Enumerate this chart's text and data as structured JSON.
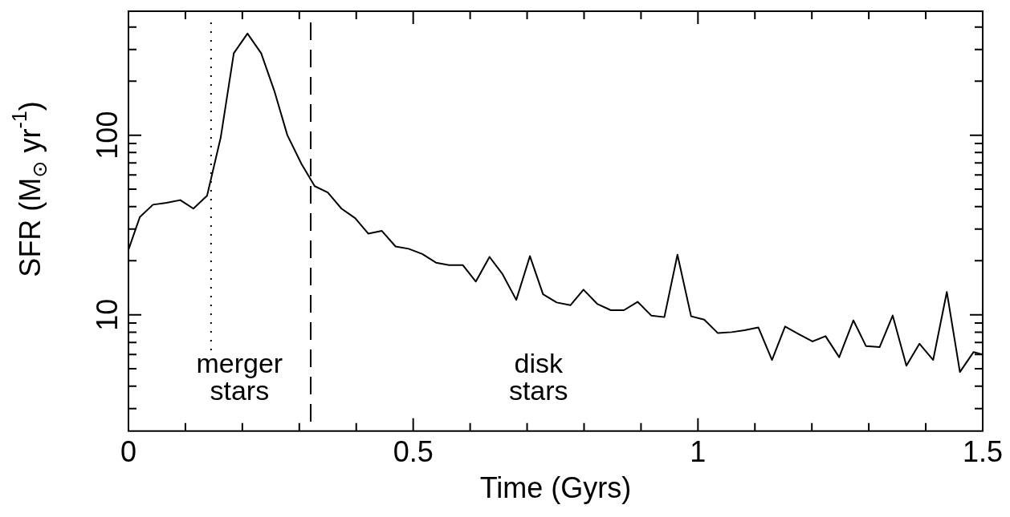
{
  "chart_data": {
    "type": "line",
    "xlabel": "Time (Gyrs)",
    "ylabel": "SFR (M$_{⊙}$ yr$^{-1}$)",
    "annotations": [
      "merger\nstars",
      "disk\nstars"
    ],
    "log": "y",
    "xlim": [
      0,
      1.5
    ],
    "ylim": [
      2.25,
      490
    ],
    "xticks": [
      0,
      {
        "value": 0.1,
        "label": null
      },
      {
        "value": 0.2,
        "label": null
      },
      {
        "value": 0.3,
        "label": null
      },
      {
        "value": 0.4,
        "label": null
      },
      0.5,
      {
        "value": 0.6,
        "label": null
      },
      {
        "value": 0.7,
        "label": null
      },
      {
        "value": 0.8,
        "label": null
      },
      {
        "value": 0.9,
        "label": null
      },
      1,
      {
        "value": 1.1,
        "label": null
      },
      {
        "value": 1.2,
        "label": null
      },
      {
        "value": 1.3,
        "label": null
      },
      {
        "value": 1.4,
        "label": null
      },
      1.5
    ],
    "yticks": [
      {
        "value": 3,
        "label": null
      },
      {
        "value": 4,
        "label": null
      },
      {
        "value": 5,
        "label": null
      },
      {
        "value": 6,
        "label": null
      },
      {
        "value": 7,
        "label": null
      },
      {
        "value": 8,
        "label": null
      },
      {
        "value": 9,
        "label": null
      },
      10,
      {
        "value": 20,
        "label": null
      },
      {
        "value": 30,
        "label": null
      },
      {
        "value": 40,
        "label": null
      },
      {
        "value": 50,
        "label": null
      },
      {
        "value": 60,
        "label": null
      },
      {
        "value": 70,
        "label": null
      },
      {
        "value": 80,
        "label": null
      },
      {
        "value": 90,
        "label": null
      },
      100,
      {
        "value": 200,
        "label": null
      },
      {
        "value": 300,
        "label": null
      },
      {
        "value": 400,
        "label": null
      }
    ],
    "marker": "none",
    "line_style": "solid",
    "legend": false,
    "ref_lines": [
      {
        "axis": "x",
        "value": 0.145,
        "line_style": "dotted"
      },
      {
        "axis": "x",
        "value": 0.32,
        "line_style": "dashed"
      }
    ],
    "series": [
      {
        "color": "#000000",
        "x": [
          0,
          0.02,
          0.043,
          0.067,
          0.091,
          0.114,
          0.138,
          0.162,
          0.185,
          0.209,
          0.233,
          0.256,
          0.279,
          0.304,
          0.327,
          0.35,
          0.374,
          0.398,
          0.421,
          0.445,
          0.469,
          0.492,
          0.516,
          0.54,
          0.563,
          0.587,
          0.61,
          0.634,
          0.657,
          0.681,
          0.705,
          0.728,
          0.752,
          0.776,
          0.799,
          0.823,
          0.847,
          0.87,
          0.894,
          0.918,
          0.941,
          0.964,
          0.988,
          1.011,
          1.035,
          1.059,
          1.082,
          1.106,
          1.13,
          1.153,
          1.177,
          1.201,
          1.224,
          1.248,
          1.273,
          1.295,
          1.319,
          1.342,
          1.366,
          1.389,
          1.413,
          1.437,
          1.46,
          1.484,
          1.5
        ],
        "values": [
          23,
          35,
          41,
          42,
          43.5,
          39,
          46,
          97,
          286,
          368,
          286,
          177,
          100,
          69,
          52,
          48,
          39,
          34.5,
          28.3,
          29.3,
          24,
          23.3,
          21.8,
          19.5,
          18.9,
          18.9,
          15.3,
          21,
          16.8,
          12.1,
          21.2,
          13,
          11.7,
          11.3,
          13.8,
          11.5,
          10.6,
          10.6,
          11.8,
          9.9,
          9.7,
          21.6,
          9.8,
          9.4,
          7.9,
          8,
          8.2,
          8.5,
          5.6,
          8.6,
          7.8,
          7.1,
          7.6,
          5.8,
          9.3,
          6.7,
          6.6,
          9.9,
          5.2,
          6.9,
          5.6,
          13.4,
          4.8,
          6.2,
          6
        ]
      }
    ]
  }
}
